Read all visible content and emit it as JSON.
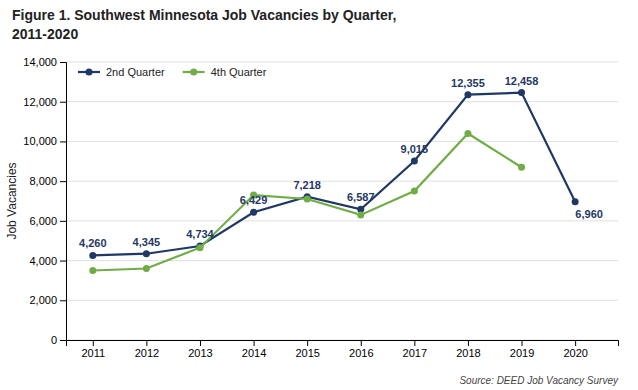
{
  "chart_data": {
    "type": "line",
    "title": "Figure 1. Southwest Minnesota Job Vacancies by Quarter,",
    "subtitle": "2011-2020",
    "ylabel": "Job Vacancies",
    "annotations": [
      "Source: DEED Job Vacancy Survey"
    ],
    "x": [
      2011,
      2012,
      2013,
      2014,
      2015,
      2016,
      2017,
      2018,
      2019,
      2020
    ],
    "series": [
      {
        "name": "2nd Quarter",
        "color": "#1f3864",
        "marker": "circle",
        "line_style": "solid",
        "values": [
          4260,
          4345,
          4734,
          6429,
          7218,
          6587,
          9015,
          12355,
          12458,
          6960
        ],
        "data_labels": true,
        "value_labels": [
          "4,260",
          "4,345",
          "4,734",
          "6,429",
          "7,218",
          "6,587",
          "9,015",
          "12,355",
          "12,458",
          "6,960"
        ]
      },
      {
        "name": "4th Quarter",
        "color": "#70ad47",
        "marker": "circle",
        "line_style": "solid",
        "values": [
          3500,
          3600,
          4650,
          7300,
          7100,
          6300,
          7500,
          10400,
          8700,
          null
        ]
      }
    ],
    "xlim": [
      2010.5,
      2020.8
    ],
    "xticks": [
      2011,
      2012,
      2013,
      2014,
      2015,
      2016,
      2017,
      2018,
      2019,
      2020
    ],
    "ylim": [
      0,
      14000
    ],
    "yticks": [
      0,
      {
        "value": 2000,
        "label": "2,000"
      },
      {
        "value": 4000,
        "label": "4,000"
      },
      {
        "value": 6000,
        "label": "6,000"
      },
      {
        "value": 8000,
        "label": "8,000"
      },
      {
        "value": 10000,
        "label": "10,000"
      },
      {
        "value": 12000,
        "label": "12,000"
      },
      {
        "value": 14000,
        "label": "14,000"
      }
    ],
    "grid": true,
    "legend": "top-left"
  }
}
